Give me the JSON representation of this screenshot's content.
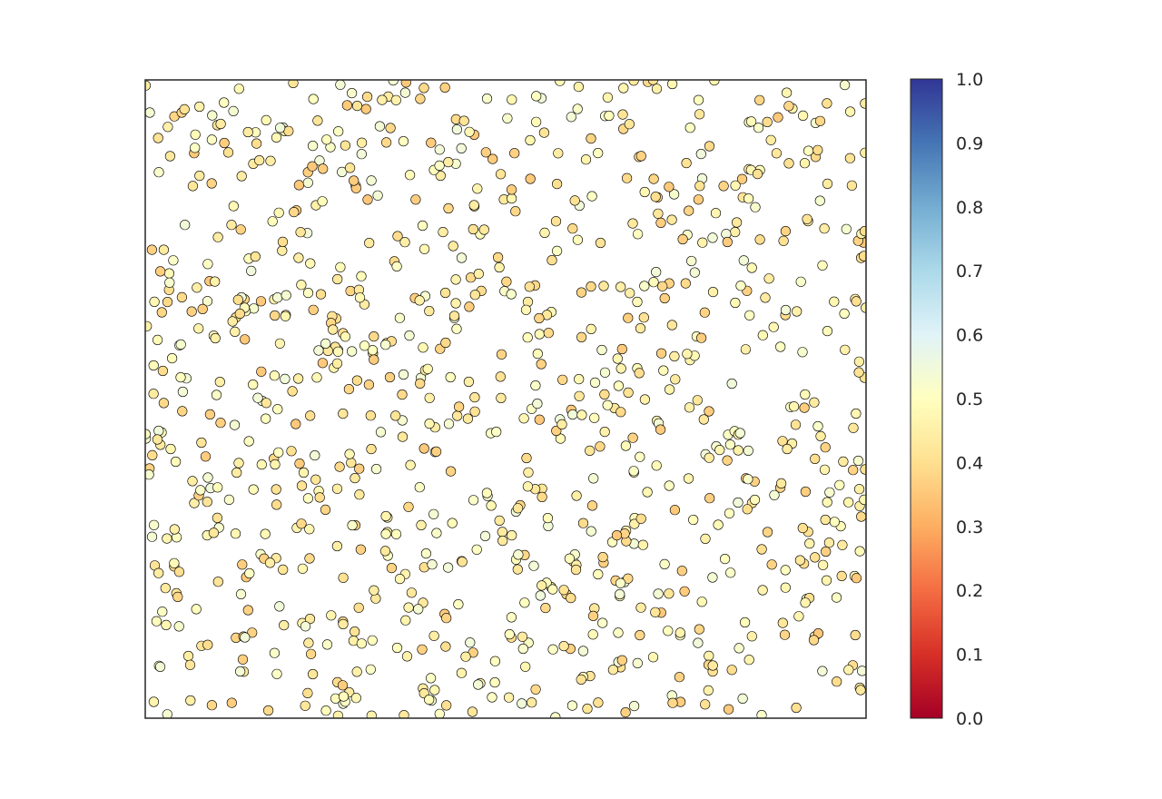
{
  "chart_data": {
    "type": "scatter",
    "title": "",
    "xlabel": "",
    "ylabel": "",
    "xlim": [
      0,
      1
    ],
    "ylim": [
      0,
      1
    ],
    "x_ticks_visible": false,
    "y_ticks_visible": false,
    "grid": false,
    "legend": "none",
    "point_count_approx": 1000,
    "point_color_value_range": [
      0.35,
      0.55
    ],
    "distribution": "uniform random over the plot area",
    "colorbar": {
      "colormap": "RdYlBu",
      "range": [
        0.0,
        1.0
      ],
      "ticks": [
        0.0,
        0.1,
        0.2,
        0.3,
        0.4,
        0.5,
        0.6,
        0.7,
        0.8,
        0.9,
        1.0
      ],
      "tick_labels": [
        "0.0",
        "0.1",
        "0.2",
        "0.3",
        "0.4",
        "0.5",
        "0.6",
        "0.7",
        "0.8",
        "0.9",
        "1.0"
      ],
      "colors": [
        "#a50026",
        "#d73027",
        "#f46d43",
        "#fdae61",
        "#fee090",
        "#ffffbf",
        "#e0f3f8",
        "#abd9e9",
        "#74add1",
        "#4575b4",
        "#313695"
      ]
    }
  }
}
